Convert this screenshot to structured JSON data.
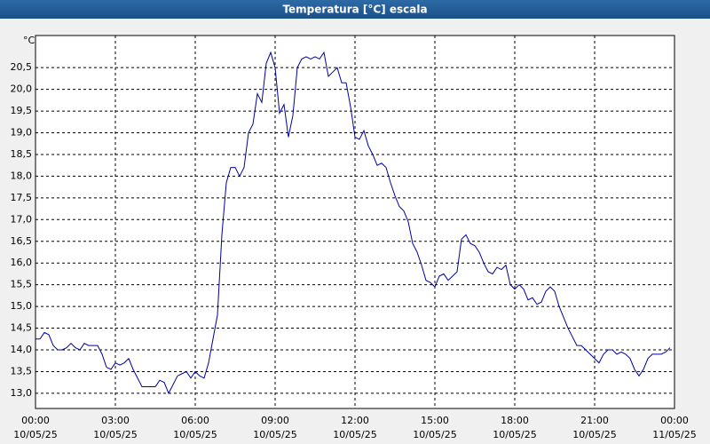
{
  "chart_data": {
    "type": "line",
    "title": "Temperatura [°C] escala",
    "y_unit": "°C",
    "x": [
      0,
      10,
      20,
      30,
      40,
      50,
      60,
      70,
      80,
      90,
      100,
      110,
      120,
      130,
      140,
      150,
      160,
      170,
      180,
      190,
      200,
      210,
      220,
      230,
      240,
      250,
      260,
      270,
      280,
      290,
      300,
      310,
      320,
      330,
      340,
      350,
      360,
      370,
      380,
      390,
      400,
      410,
      420,
      430,
      440,
      450,
      460,
      470,
      480,
      490,
      500,
      510,
      520,
      530,
      540,
      550,
      560,
      570,
      580,
      590,
      600,
      610,
      620,
      630,
      640,
      650,
      660,
      670,
      680,
      690,
      700,
      710,
      720,
      730,
      740,
      750,
      760,
      770,
      780,
      790,
      800,
      810,
      820,
      830,
      840,
      850,
      860,
      870,
      880,
      890,
      900,
      910,
      920,
      930,
      940,
      950,
      960,
      970,
      980,
      990,
      1000,
      1010,
      1020,
      1030,
      1040,
      1050,
      1060,
      1070,
      1080,
      1090,
      1100,
      1110,
      1120,
      1130,
      1140,
      1150,
      1160,
      1170,
      1180,
      1190,
      1200,
      1210,
      1220,
      1230,
      1240,
      1250,
      1260,
      1270,
      1280,
      1290,
      1300,
      1310,
      1320,
      1330,
      1340,
      1350,
      1360,
      1370,
      1380,
      1390,
      1400,
      1410,
      1420,
      1430
    ],
    "series": [
      {
        "name": "Temperatura",
        "color": "#0000a0",
        "values": [
          14.25,
          14.25,
          14.4,
          14.35,
          14.1,
          14.0,
          14.0,
          14.05,
          14.15,
          14.05,
          14.0,
          14.15,
          14.1,
          14.1,
          14.1,
          13.9,
          13.6,
          13.55,
          13.7,
          13.65,
          13.7,
          13.8,
          13.55,
          13.35,
          13.15,
          13.15,
          13.15,
          13.15,
          13.3,
          13.25,
          13.0,
          13.2,
          13.4,
          13.45,
          13.5,
          13.35,
          13.5,
          13.4,
          13.35,
          13.7,
          14.25,
          14.8,
          16.65,
          17.85,
          18.2,
          18.2,
          18.0,
          18.2,
          19.0,
          19.2,
          19.9,
          19.7,
          20.6,
          20.85,
          20.5,
          19.45,
          19.65,
          18.9,
          19.4,
          20.5,
          20.7,
          20.75,
          20.7,
          20.75,
          20.7,
          20.85,
          20.3,
          20.4,
          20.5,
          20.15,
          20.15,
          19.6,
          18.9,
          18.85,
          19.05,
          18.7,
          18.5,
          18.25,
          18.3,
          18.2,
          17.85,
          17.55,
          17.3,
          17.2,
          16.95,
          16.45,
          16.25,
          15.95,
          15.6,
          15.55,
          15.45,
          15.7,
          15.75,
          15.6,
          15.7,
          15.8,
          16.55,
          16.65,
          16.45,
          16.4,
          16.25,
          16.0,
          15.8,
          15.75,
          15.9,
          15.85,
          15.95,
          15.5,
          15.4,
          15.5,
          15.4,
          15.15,
          15.2,
          15.05,
          15.1,
          15.35,
          15.45,
          15.35,
          15.0,
          14.75,
          14.5,
          14.3,
          14.1,
          14.1,
          14.0,
          13.9,
          13.8,
          13.7,
          13.9,
          14.0,
          14.0,
          13.9,
          13.95,
          13.9,
          13.8,
          13.55,
          13.4,
          13.55,
          13.8,
          13.9,
          13.9,
          13.9,
          13.95,
          14.05
        ]
      }
    ],
    "xlim": [
      0,
      1440
    ],
    "xticks": [
      {
        "value": 0,
        "label": "00:00"
      },
      {
        "value": 180,
        "label": "03:00"
      },
      {
        "value": 360,
        "label": "06:00"
      },
      {
        "value": 540,
        "label": "09:00"
      },
      {
        "value": 720,
        "label": "12:00"
      },
      {
        "value": 900,
        "label": "15:00"
      },
      {
        "value": 1080,
        "label": "18:00"
      },
      {
        "value": 1260,
        "label": "21:00"
      },
      {
        "value": 1440,
        "label": "00:00"
      }
    ],
    "xtick_dates": [
      "10/05/25",
      "10/05/25",
      "10/05/25",
      "10/05/25",
      "10/05/25",
      "10/05/25",
      "10/05/25",
      "10/05/25",
      "11/05/25"
    ],
    "ylim": [
      12.65,
      21.24
    ],
    "yticks": [
      {
        "value": 13,
        "label": "13,0"
      },
      {
        "value": 13.5,
        "label": "13,5"
      },
      {
        "value": 14,
        "label": "14,0"
      },
      {
        "value": 14.5,
        "label": "14,5"
      },
      {
        "value": 15,
        "label": "15,0"
      },
      {
        "value": 15.5,
        "label": "15,5"
      },
      {
        "value": 16,
        "label": "16,0"
      },
      {
        "value": 16.5,
        "label": "16,5"
      },
      {
        "value": 17,
        "label": "17,0"
      },
      {
        "value": 17.5,
        "label": "17,5"
      },
      {
        "value": 18,
        "label": "18,0"
      },
      {
        "value": 18.5,
        "label": "18,5"
      },
      {
        "value": 19,
        "label": "19,0"
      },
      {
        "value": 19.5,
        "label": "19,5"
      },
      {
        "value": 20,
        "label": "20,0"
      },
      {
        "value": 20.5,
        "label": "20,5"
      }
    ],
    "grid": true
  }
}
